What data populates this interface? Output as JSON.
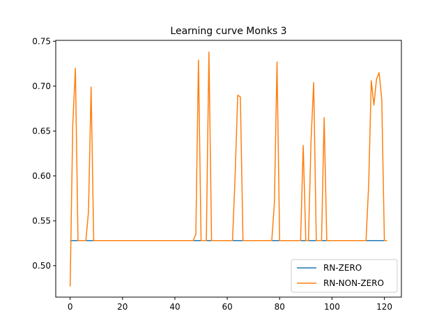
{
  "chart_data": {
    "type": "line",
    "title": "Learning curve Monks 3",
    "xlabel": "",
    "ylabel": "",
    "xlim": [
      -5.5,
      126.5
    ],
    "ylim": [
      0.465,
      0.751
    ],
    "xticks": [
      0,
      20,
      40,
      60,
      80,
      100,
      120
    ],
    "yticks": [
      0.5,
      0.55,
      0.6,
      0.65,
      0.7,
      0.75
    ],
    "ytick_labels": [
      "0.50",
      "0.55",
      "0.60",
      "0.65",
      "0.70",
      "0.75"
    ],
    "legend_position": "lower-right",
    "grid": false,
    "series": [
      {
        "name": "RN-ZERO",
        "color": "#1f77b4",
        "points": [
          [
            0,
            0.528
          ],
          [
            121,
            0.528
          ]
        ]
      },
      {
        "name": "RN-NON-ZERO",
        "color": "#ff7f0e",
        "points": [
          [
            0,
            0.477
          ],
          [
            1,
            0.657
          ],
          [
            2,
            0.72
          ],
          [
            3,
            0.528
          ],
          [
            6,
            0.528
          ],
          [
            7,
            0.56
          ],
          [
            8,
            0.699
          ],
          [
            9,
            0.528
          ],
          [
            47,
            0.528
          ],
          [
            48,
            0.535
          ],
          [
            49,
            0.729
          ],
          [
            50,
            0.528
          ],
          [
            52,
            0.528
          ],
          [
            53,
            0.738
          ],
          [
            54,
            0.528
          ],
          [
            62,
            0.528
          ],
          [
            63,
            0.6
          ],
          [
            64,
            0.69
          ],
          [
            65,
            0.688
          ],
          [
            66,
            0.528
          ],
          [
            77,
            0.528
          ],
          [
            78,
            0.57
          ],
          [
            79,
            0.727
          ],
          [
            80,
            0.528
          ],
          [
            88,
            0.528
          ],
          [
            89,
            0.634
          ],
          [
            90,
            0.528
          ],
          [
            91,
            0.528
          ],
          [
            92,
            0.64
          ],
          [
            93,
            0.704
          ],
          [
            94,
            0.528
          ],
          [
            96,
            0.528
          ],
          [
            97,
            0.665
          ],
          [
            98,
            0.528
          ],
          [
            113,
            0.528
          ],
          [
            114,
            0.59
          ],
          [
            115,
            0.706
          ],
          [
            116,
            0.679
          ],
          [
            117,
            0.708
          ],
          [
            118,
            0.715
          ],
          [
            119,
            0.685
          ],
          [
            120,
            0.528
          ],
          [
            121,
            0.528
          ]
        ]
      }
    ]
  }
}
